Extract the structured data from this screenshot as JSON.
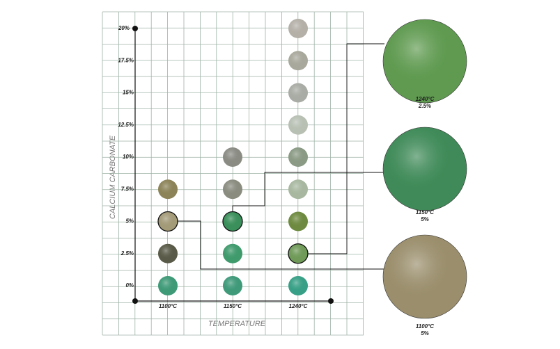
{
  "y_axis": {
    "label": "CALCIUM CARBONATE",
    "ticks": [
      "0%",
      "2.5%",
      "5%",
      "7.5%",
      "10%",
      "12.5%",
      "15%",
      "17.5%",
      "20%"
    ]
  },
  "x_axis": {
    "label": "TEMPERATURE"
  },
  "columns": [
    {
      "label": "1100°C",
      "colors": [
        "#3f9a78",
        "#5a5a48",
        "#a39a78",
        "#8c8358"
      ],
      "highlight": 2
    },
    {
      "label": "1150°C",
      "colors": [
        "#3f9a7a",
        "#3f9a6c",
        "#3a8f5a",
        "#8a8c80",
        "#8a8c84"
      ],
      "highlight": 2
    },
    {
      "label": "1240°C",
      "colors": [
        "#38a086",
        "#6f9a58",
        "#6e8a40",
        "#a8b8a0",
        "#8a9a84",
        "#b8c0b4",
        "#a8aca4",
        "#a8a89c",
        "#b4b0a8"
      ],
      "highlight": 1
    }
  ],
  "callouts": [
    {
      "temperature": "1240°C",
      "percent": "2.5%",
      "color": "#5f9a50"
    },
    {
      "temperature": "1150°C",
      "percent": "5%",
      "color": "#3f8a58"
    },
    {
      "temperature": "1100°C",
      "percent": "5%",
      "color": "#9a8e6c"
    }
  ]
}
